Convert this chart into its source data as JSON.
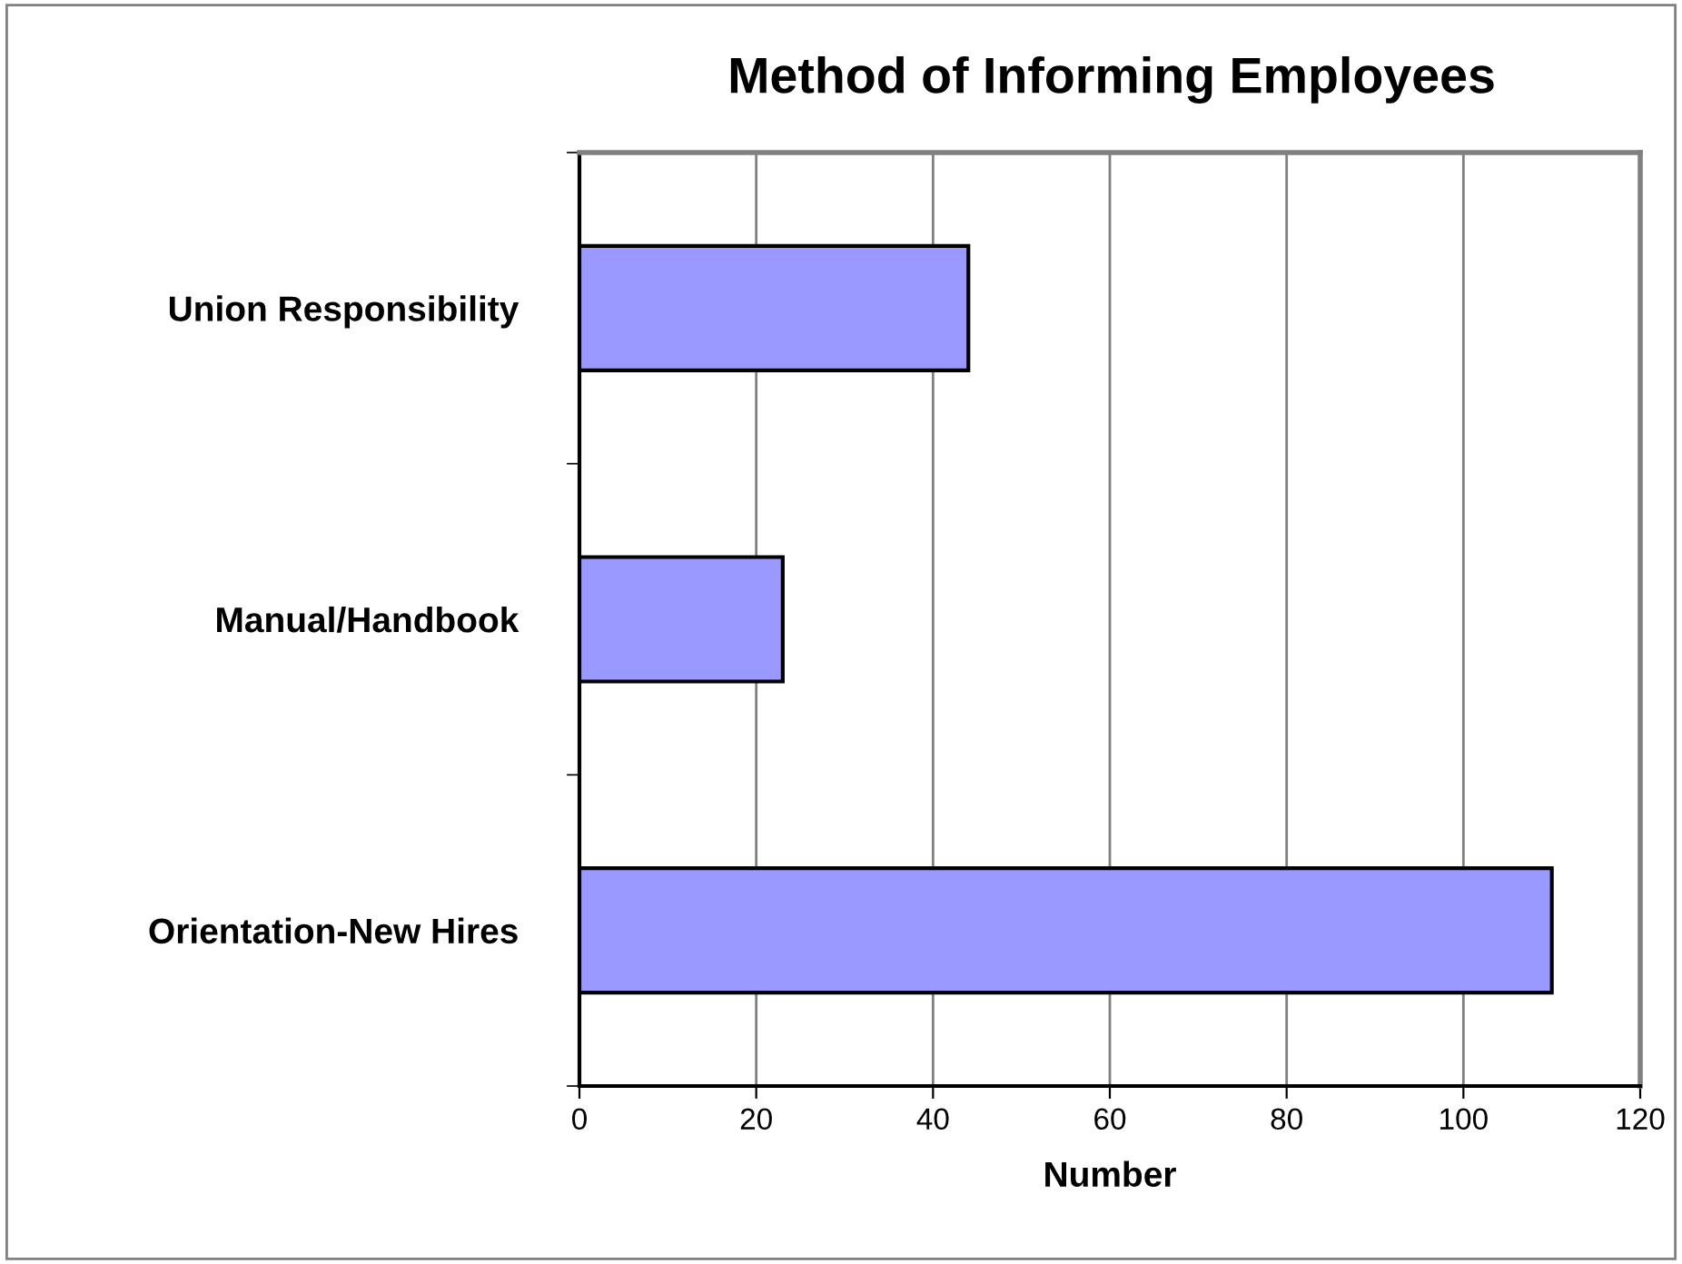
{
  "chart_data": {
    "type": "bar",
    "orientation": "horizontal",
    "title": "Method of Informing Employees",
    "xlabel": "Number",
    "categories": [
      "Union Responsibility",
      "Manual/Handbook",
      "Orientation-New Hires"
    ],
    "values": [
      44,
      23,
      110
    ],
    "color": "#9999ff",
    "xlim": [
      0,
      120
    ],
    "xticks": [
      0,
      20,
      40,
      60,
      80,
      100,
      120
    ],
    "grid": "x",
    "legend": false
  }
}
